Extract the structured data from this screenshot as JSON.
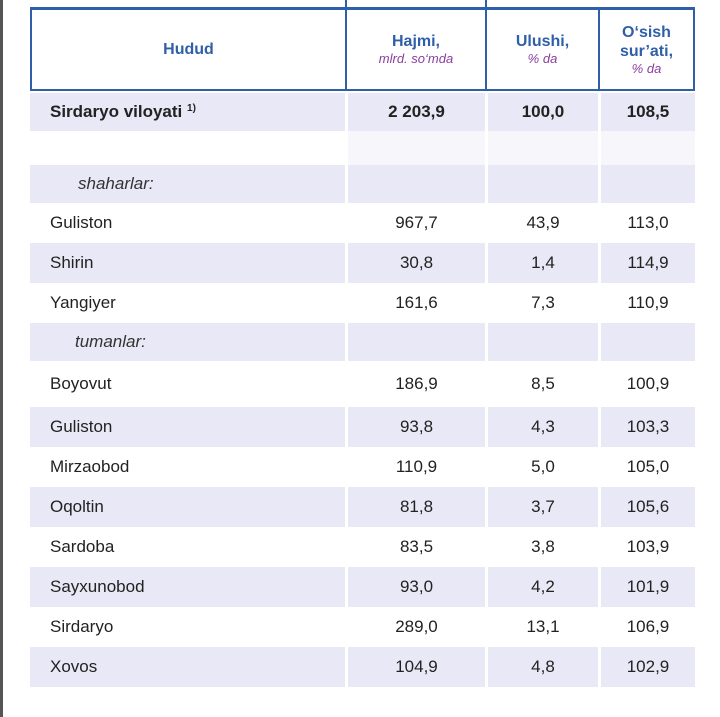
{
  "header": {
    "region": "Hudud",
    "volume": "Hajmi,",
    "volume_unit": "mlrd. so‘mda",
    "share": "Ulushi,",
    "share_unit": "% da",
    "growth": "O‘sish sur’ati,",
    "growth_unit": "% da"
  },
  "total": {
    "name": "Sirdaryo viloyati",
    "footnote": "1)",
    "volume": "2 203,9",
    "share": "100,0",
    "growth": "108,5"
  },
  "sections": {
    "cities": "shaharlar:",
    "districts": "tumanlar:"
  },
  "cities": [
    {
      "name": "Guliston",
      "volume": "967,7",
      "share": "43,9",
      "growth": "113,0"
    },
    {
      "name": "Shirin",
      "volume": "30,8",
      "share": "1,4",
      "growth": "114,9"
    },
    {
      "name": "Yangiyer",
      "volume": "161,6",
      "share": "7,3",
      "growth": "110,9"
    }
  ],
  "districts": [
    {
      "name": "Boyovut",
      "volume": "186,9",
      "share": "8,5",
      "growth": "100,9"
    },
    {
      "name": "Guliston",
      "volume": "93,8",
      "share": "4,3",
      "growth": "103,3"
    },
    {
      "name": "Mirzaobod",
      "volume": "110,9",
      "share": "5,0",
      "growth": "105,0"
    },
    {
      "name": "Oqoltin",
      "volume": "81,8",
      "share": "3,7",
      "growth": "105,6"
    },
    {
      "name": "Sardoba",
      "volume": "83,5",
      "share": "3,8",
      "growth": "103,9"
    },
    {
      "name": "Sayxunobod",
      "volume": "93,0",
      "share": "4,2",
      "growth": "101,9"
    },
    {
      "name": "Sirdaryo",
      "volume": "289,0",
      "share": "13,1",
      "growth": "106,9"
    },
    {
      "name": "Xovos",
      "volume": "104,9",
      "share": "4,8",
      "growth": "102,9"
    }
  ]
}
